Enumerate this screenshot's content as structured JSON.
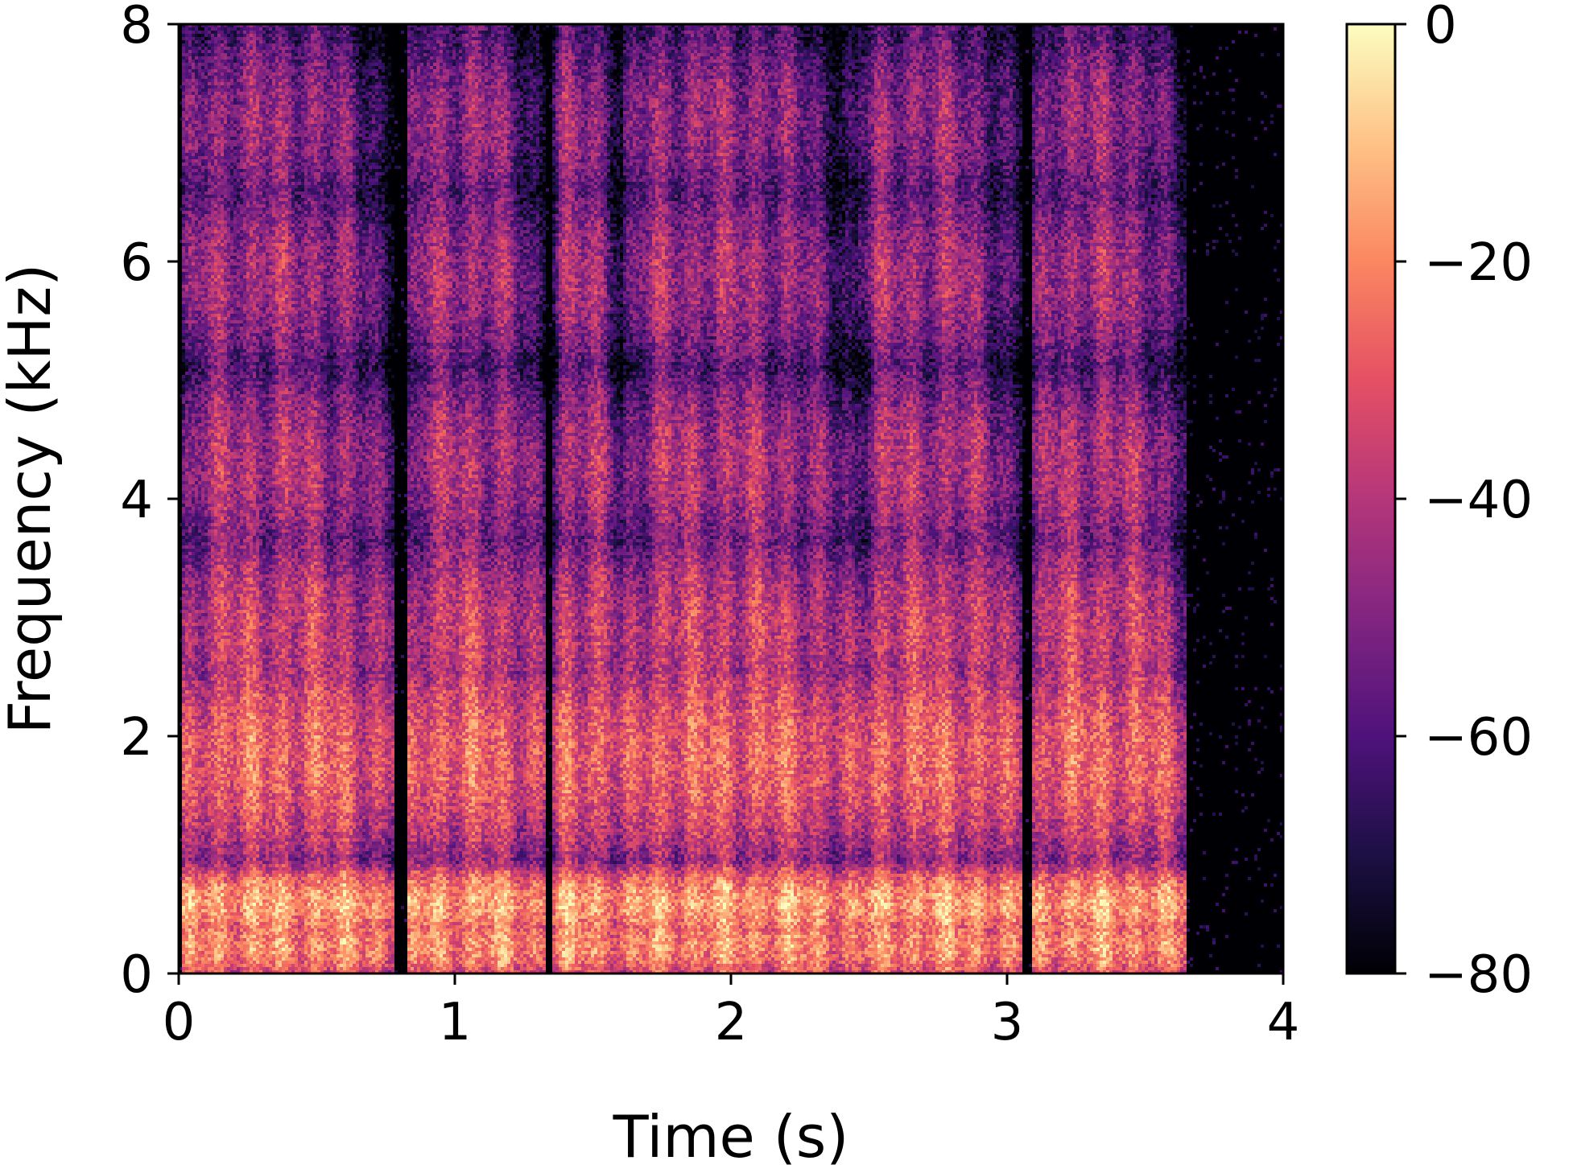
{
  "chart_data": {
    "type": "heatmap",
    "title": "",
    "xlabel": "Time (s)",
    "ylabel": "Frequency (kHz)",
    "xlim": [
      0,
      4
    ],
    "ylim": [
      0,
      8
    ],
    "x_ticks": [
      0,
      1,
      2,
      3,
      4
    ],
    "x_tick_labels": [
      "0",
      "1",
      "2",
      "3",
      "4"
    ],
    "y_ticks": [
      0,
      2,
      4,
      6,
      8
    ],
    "y_tick_labels": [
      "0",
      "2",
      "4",
      "6",
      "8"
    ],
    "grid": false,
    "colormap": "magma",
    "colorbar": {
      "range": [
        -80,
        0
      ],
      "ticks": [
        0,
        -20,
        -40,
        -60,
        -80
      ],
      "tick_labels": [
        "0",
        "−20",
        "−40",
        "−60",
        "−80"
      ]
    },
    "colors": {
      "magma_stops": [
        "#000004",
        "#1c1044",
        "#4f127b",
        "#812581",
        "#b5367a",
        "#e55064",
        "#fb8761",
        "#fec287",
        "#fcfdbf"
      ]
    },
    "background_level_db": -80,
    "speech_segments_s": [
      [
        0.0,
        0.78
      ],
      [
        0.82,
        1.32
      ],
      [
        1.35,
        1.6
      ],
      [
        1.6,
        2.45
      ],
      [
        2.45,
        3.05
      ],
      [
        3.08,
        3.65
      ]
    ],
    "formant_bands_khz": [
      {
        "center": 0.25,
        "level_db": -25
      },
      {
        "center": 0.6,
        "level_db": -20
      },
      {
        "center": 1.85,
        "level_db": -35
      },
      {
        "center": 2.9,
        "level_db": -48
      },
      {
        "center": 4.3,
        "level_db": -55
      },
      {
        "center": 5.9,
        "level_db": -58
      },
      {
        "center": 7.2,
        "level_db": -62
      }
    ]
  }
}
